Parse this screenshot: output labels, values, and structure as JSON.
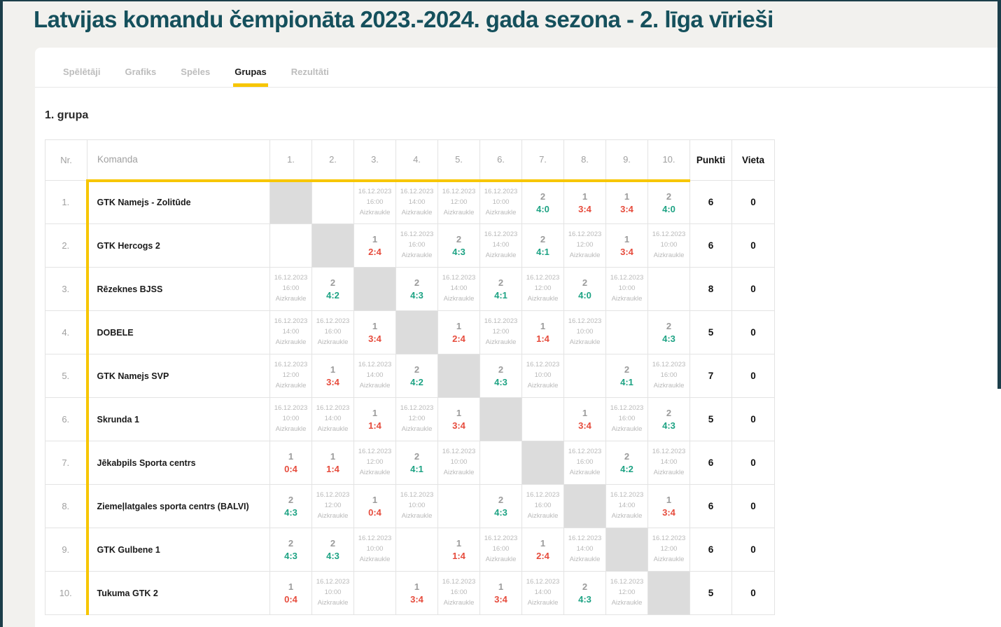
{
  "page": {
    "title": "Latvijas komandu čempionāta 2023.-2024. gada sezona - 2. līga vīrieši"
  },
  "colors": {
    "title_teal": "#15505C",
    "accent_yellow": "#F7C600",
    "win_green": "#1EA384",
    "loss_red": "#E64B3C",
    "diagonal_gray": "#DCDCDC",
    "edge_dark": "#1C3E4A"
  },
  "tabs": [
    {
      "id": "players",
      "label": "Spēlētāji",
      "active": false
    },
    {
      "id": "schedule",
      "label": "Grafiks",
      "active": false
    },
    {
      "id": "games",
      "label": "Spēles",
      "active": false
    },
    {
      "id": "groups",
      "label": "Grupas",
      "active": true
    },
    {
      "id": "results",
      "label": "Rezultāti",
      "active": false
    }
  ],
  "group": {
    "heading": "1. grupa"
  },
  "table": {
    "headers": {
      "nr": "Nr.",
      "team": "Komanda",
      "rounds": [
        "1.",
        "2.",
        "3.",
        "4.",
        "5.",
        "6.",
        "7.",
        "8.",
        "9.",
        "10."
      ],
      "points": "Punkti",
      "place": "Vieta"
    },
    "rows": [
      {
        "nr": "1.",
        "team": "GTK Namejs - Zolitūde",
        "points": "6",
        "place": "0",
        "cells": [
          {
            "type": "self"
          },
          {
            "type": "empty"
          },
          {
            "type": "scheduled",
            "date": "16.12.2023",
            "time": "16:00",
            "venue": "Aizkraukle"
          },
          {
            "type": "scheduled",
            "date": "16.12.2023",
            "time": "14:00",
            "venue": "Aizkraukle"
          },
          {
            "type": "scheduled",
            "date": "16.12.2023",
            "time": "12:00",
            "venue": "Aizkraukle"
          },
          {
            "type": "scheduled",
            "date": "16.12.2023",
            "time": "10:00",
            "venue": "Aizkraukle"
          },
          {
            "type": "result",
            "games": "2",
            "score": "4:0",
            "outcome": "win"
          },
          {
            "type": "result",
            "games": "1",
            "score": "3:4",
            "outcome": "loss"
          },
          {
            "type": "result",
            "games": "1",
            "score": "3:4",
            "outcome": "loss"
          },
          {
            "type": "result",
            "games": "2",
            "score": "4:0",
            "outcome": "win"
          }
        ]
      },
      {
        "nr": "2.",
        "team": "GTK Hercogs 2",
        "points": "6",
        "place": "0",
        "cells": [
          {
            "type": "empty"
          },
          {
            "type": "self"
          },
          {
            "type": "result",
            "games": "1",
            "score": "2:4",
            "outcome": "loss"
          },
          {
            "type": "scheduled",
            "date": "16.12.2023",
            "time": "16:00",
            "venue": "Aizkraukle"
          },
          {
            "type": "result",
            "games": "2",
            "score": "4:3",
            "outcome": "win"
          },
          {
            "type": "scheduled",
            "date": "16.12.2023",
            "time": "14:00",
            "venue": "Aizkraukle"
          },
          {
            "type": "result",
            "games": "2",
            "score": "4:1",
            "outcome": "win"
          },
          {
            "type": "scheduled",
            "date": "16.12.2023",
            "time": "12:00",
            "venue": "Aizkraukle"
          },
          {
            "type": "result",
            "games": "1",
            "score": "3:4",
            "outcome": "loss"
          },
          {
            "type": "scheduled",
            "date": "16.12.2023",
            "time": "10:00",
            "venue": "Aizkraukle"
          }
        ]
      },
      {
        "nr": "3.",
        "team": "Rēzeknes BJSS",
        "points": "8",
        "place": "0",
        "cells": [
          {
            "type": "scheduled",
            "date": "16.12.2023",
            "time": "16:00",
            "venue": "Aizkraukle"
          },
          {
            "type": "result",
            "games": "2",
            "score": "4:2",
            "outcome": "win"
          },
          {
            "type": "self"
          },
          {
            "type": "result",
            "games": "2",
            "score": "4:3",
            "outcome": "win"
          },
          {
            "type": "scheduled",
            "date": "16.12.2023",
            "time": "14:00",
            "venue": "Aizkraukle"
          },
          {
            "type": "result",
            "games": "2",
            "score": "4:1",
            "outcome": "win"
          },
          {
            "type": "scheduled",
            "date": "16.12.2023",
            "time": "12:00",
            "venue": "Aizkraukle"
          },
          {
            "type": "result",
            "games": "2",
            "score": "4:0",
            "outcome": "win"
          },
          {
            "type": "scheduled",
            "date": "16.12.2023",
            "time": "10:00",
            "venue": "Aizkraukle"
          },
          {
            "type": "empty"
          }
        ]
      },
      {
        "nr": "4.",
        "team": "DOBELE",
        "points": "5",
        "place": "0",
        "cells": [
          {
            "type": "scheduled",
            "date": "16.12.2023",
            "time": "14:00",
            "venue": "Aizkraukle"
          },
          {
            "type": "scheduled",
            "date": "16.12.2023",
            "time": "16:00",
            "venue": "Aizkraukle"
          },
          {
            "type": "result",
            "games": "1",
            "score": "3:4",
            "outcome": "loss"
          },
          {
            "type": "self"
          },
          {
            "type": "result",
            "games": "1",
            "score": "2:4",
            "outcome": "loss"
          },
          {
            "type": "scheduled",
            "date": "16.12.2023",
            "time": "12:00",
            "venue": "Aizkraukle"
          },
          {
            "type": "result",
            "games": "1",
            "score": "1:4",
            "outcome": "loss"
          },
          {
            "type": "scheduled",
            "date": "16.12.2023",
            "time": "10:00",
            "venue": "Aizkraukle"
          },
          {
            "type": "empty"
          },
          {
            "type": "result",
            "games": "2",
            "score": "4:3",
            "outcome": "win"
          }
        ]
      },
      {
        "nr": "5.",
        "team": "GTK Namejs SVP",
        "points": "7",
        "place": "0",
        "cells": [
          {
            "type": "scheduled",
            "date": "16.12.2023",
            "time": "12:00",
            "venue": "Aizkraukle"
          },
          {
            "type": "result",
            "games": "1",
            "score": "3:4",
            "outcome": "loss"
          },
          {
            "type": "scheduled",
            "date": "16.12.2023",
            "time": "14:00",
            "venue": "Aizkraukle"
          },
          {
            "type": "result",
            "games": "2",
            "score": "4:2",
            "outcome": "win"
          },
          {
            "type": "self"
          },
          {
            "type": "result",
            "games": "2",
            "score": "4:3",
            "outcome": "win"
          },
          {
            "type": "scheduled",
            "date": "16.12.2023",
            "time": "10:00",
            "venue": "Aizkraukle"
          },
          {
            "type": "empty"
          },
          {
            "type": "result",
            "games": "2",
            "score": "4:1",
            "outcome": "win"
          },
          {
            "type": "scheduled",
            "date": "16.12.2023",
            "time": "16:00",
            "venue": "Aizkraukle"
          }
        ]
      },
      {
        "nr": "6.",
        "team": "Skrunda 1",
        "points": "5",
        "place": "0",
        "cells": [
          {
            "type": "scheduled",
            "date": "16.12.2023",
            "time": "10:00",
            "venue": "Aizkraukle"
          },
          {
            "type": "scheduled",
            "date": "16.12.2023",
            "time": "14:00",
            "venue": "Aizkraukle"
          },
          {
            "type": "result",
            "games": "1",
            "score": "1:4",
            "outcome": "loss"
          },
          {
            "type": "scheduled",
            "date": "16.12.2023",
            "time": "12:00",
            "venue": "Aizkraukle"
          },
          {
            "type": "result",
            "games": "1",
            "score": "3:4",
            "outcome": "loss"
          },
          {
            "type": "self"
          },
          {
            "type": "empty"
          },
          {
            "type": "result",
            "games": "1",
            "score": "3:4",
            "outcome": "loss"
          },
          {
            "type": "scheduled",
            "date": "16.12.2023",
            "time": "16:00",
            "venue": "Aizkraukle"
          },
          {
            "type": "result",
            "games": "2",
            "score": "4:3",
            "outcome": "win"
          }
        ]
      },
      {
        "nr": "7.",
        "team": "Jēkabpils Sporta centrs",
        "points": "6",
        "place": "0",
        "cells": [
          {
            "type": "result",
            "games": "1",
            "score": "0:4",
            "outcome": "loss"
          },
          {
            "type": "result",
            "games": "1",
            "score": "1:4",
            "outcome": "loss"
          },
          {
            "type": "scheduled",
            "date": "16.12.2023",
            "time": "12:00",
            "venue": "Aizkraukle"
          },
          {
            "type": "result",
            "games": "2",
            "score": "4:1",
            "outcome": "win"
          },
          {
            "type": "scheduled",
            "date": "16.12.2023",
            "time": "10:00",
            "venue": "Aizkraukle"
          },
          {
            "type": "empty"
          },
          {
            "type": "self"
          },
          {
            "type": "scheduled",
            "date": "16.12.2023",
            "time": "16:00",
            "venue": "Aizkraukle"
          },
          {
            "type": "result",
            "games": "2",
            "score": "4:2",
            "outcome": "win"
          },
          {
            "type": "scheduled",
            "date": "16.12.2023",
            "time": "14:00",
            "venue": "Aizkraukle"
          }
        ]
      },
      {
        "nr": "8.",
        "team": "Ziemeļlatgales sporta centrs (BALVI)",
        "points": "6",
        "place": "0",
        "cells": [
          {
            "type": "result",
            "games": "2",
            "score": "4:3",
            "outcome": "win"
          },
          {
            "type": "scheduled",
            "date": "16.12.2023",
            "time": "12:00",
            "venue": "Aizkraukle"
          },
          {
            "type": "result",
            "games": "1",
            "score": "0:4",
            "outcome": "loss"
          },
          {
            "type": "scheduled",
            "date": "16.12.2023",
            "time": "10:00",
            "venue": "Aizkraukle"
          },
          {
            "type": "empty"
          },
          {
            "type": "result",
            "games": "2",
            "score": "4:3",
            "outcome": "win"
          },
          {
            "type": "scheduled",
            "date": "16.12.2023",
            "time": "16:00",
            "venue": "Aizkraukle"
          },
          {
            "type": "self"
          },
          {
            "type": "scheduled",
            "date": "16.12.2023",
            "time": "14:00",
            "venue": "Aizkraukle"
          },
          {
            "type": "result",
            "games": "1",
            "score": "3:4",
            "outcome": "loss"
          }
        ]
      },
      {
        "nr": "9.",
        "team": "GTK Gulbene 1",
        "points": "6",
        "place": "0",
        "cells": [
          {
            "type": "result",
            "games": "2",
            "score": "4:3",
            "outcome": "win"
          },
          {
            "type": "result",
            "games": "2",
            "score": "4:3",
            "outcome": "win"
          },
          {
            "type": "scheduled",
            "date": "16.12.2023",
            "time": "10:00",
            "venue": "Aizkraukle"
          },
          {
            "type": "empty"
          },
          {
            "type": "result",
            "games": "1",
            "score": "1:4",
            "outcome": "loss"
          },
          {
            "type": "scheduled",
            "date": "16.12.2023",
            "time": "16:00",
            "venue": "Aizkraukle"
          },
          {
            "type": "result",
            "games": "1",
            "score": "2:4",
            "outcome": "loss"
          },
          {
            "type": "scheduled",
            "date": "16.12.2023",
            "time": "14:00",
            "venue": "Aizkraukle"
          },
          {
            "type": "self"
          },
          {
            "type": "scheduled",
            "date": "16.12.2023",
            "time": "12:00",
            "venue": "Aizkraukle"
          }
        ]
      },
      {
        "nr": "10.",
        "team": "Tukuma GTK 2",
        "points": "5",
        "place": "0",
        "cells": [
          {
            "type": "result",
            "games": "1",
            "score": "0:4",
            "outcome": "loss"
          },
          {
            "type": "scheduled",
            "date": "16.12.2023",
            "time": "10:00",
            "venue": "Aizkraukle"
          },
          {
            "type": "empty"
          },
          {
            "type": "result",
            "games": "1",
            "score": "3:4",
            "outcome": "loss"
          },
          {
            "type": "scheduled",
            "date": "16.12.2023",
            "time": "16:00",
            "venue": "Aizkraukle"
          },
          {
            "type": "result",
            "games": "1",
            "score": "3:4",
            "outcome": "loss"
          },
          {
            "type": "scheduled",
            "date": "16.12.2023",
            "time": "14:00",
            "venue": "Aizkraukle"
          },
          {
            "type": "result",
            "games": "2",
            "score": "4:3",
            "outcome": "win"
          },
          {
            "type": "scheduled",
            "date": "16.12.2023",
            "time": "12:00",
            "venue": "Aizkraukle"
          },
          {
            "type": "self"
          }
        ]
      }
    ]
  }
}
